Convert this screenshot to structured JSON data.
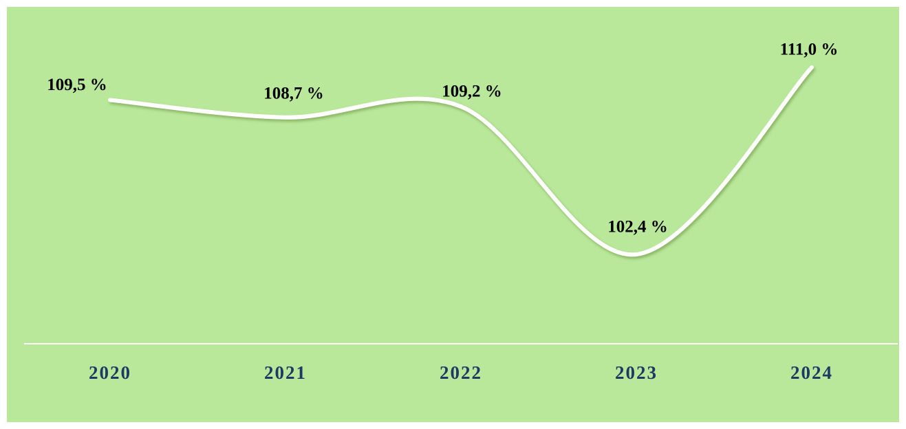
{
  "chart_data": {
    "type": "line",
    "categories": [
      "2020",
      "2021",
      "2022",
      "2023",
      "2024"
    ],
    "values": [
      109.5,
      108.7,
      109.2,
      102.4,
      111.0
    ],
    "value_labels": [
      "109,5 %",
      "108,7 %",
      "109,2 %",
      "102,4 %",
      "111,0 %"
    ],
    "color": "#ffffff"
  }
}
